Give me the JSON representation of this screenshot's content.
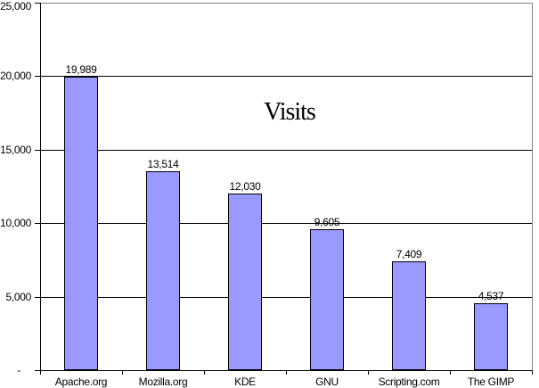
{
  "chart_data": {
    "type": "bar",
    "title": "Visits",
    "categories": [
      "Apache.org",
      "Mozilla.org",
      "KDE",
      "GNU",
      "Scripting.com",
      "The GIMP"
    ],
    "values": [
      19989,
      13514,
      12030,
      9605,
      7409,
      4537
    ],
    "value_labels": [
      "19,989",
      "13,514",
      "12,030",
      "9,605",
      "7,409",
      "4,537"
    ],
    "xlabel": "",
    "ylabel": "",
    "ylim": [
      0,
      25000
    ],
    "ytick_values": [
      0,
      5000,
      10000,
      15000,
      20000,
      25000
    ],
    "ytick_labels": [
      "-",
      "5,000",
      "10,000",
      "15,000",
      "20,000",
      "25,000"
    ],
    "grid": true,
    "legend": "none",
    "colors": {
      "bar_fill": "#9999FF",
      "bar_border": "#000000",
      "gridline": "#000000",
      "axis": "#000000",
      "plot_border": "#808080",
      "background": "#FFFFFF",
      "text": "#000000"
    }
  }
}
